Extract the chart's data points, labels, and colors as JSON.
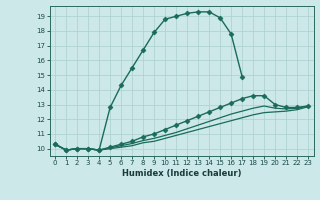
{
  "xlabel": "Humidex (Indice chaleur)",
  "bg_color": "#cce8e8",
  "line_color": "#1a6b5a",
  "grid_color": "#aacfcf",
  "xlim": [
    -0.5,
    23.5
  ],
  "ylim": [
    9.5,
    19.7
  ],
  "yticks": [
    10,
    11,
    12,
    13,
    14,
    15,
    16,
    17,
    18,
    19
  ],
  "xticks": [
    0,
    1,
    2,
    3,
    4,
    5,
    6,
    7,
    8,
    9,
    10,
    11,
    12,
    13,
    14,
    15,
    16,
    17,
    18,
    19,
    20,
    21,
    22,
    23
  ],
  "lines": [
    {
      "x": [
        0,
        1,
        2,
        3,
        4,
        5,
        6,
        7,
        8,
        9,
        10,
        11,
        12,
        13,
        14,
        15,
        16,
        17
      ],
      "y": [
        10.3,
        9.9,
        10.0,
        10.0,
        9.9,
        12.8,
        14.3,
        15.5,
        16.7,
        17.9,
        18.8,
        19.0,
        19.2,
        19.3,
        19.3,
        18.9,
        17.8,
        14.9
      ],
      "marker": "D",
      "markersize": 2.5,
      "linewidth": 1.0
    },
    {
      "x": [
        0,
        1,
        2,
        3,
        4,
        5,
        6,
        7,
        8,
        9,
        10,
        11,
        12,
        13,
        14,
        15,
        16,
        17,
        18,
        19,
        20,
        21,
        22,
        23
      ],
      "y": [
        10.3,
        9.9,
        10.0,
        10.0,
        9.9,
        10.1,
        10.3,
        10.5,
        10.8,
        11.0,
        11.3,
        11.6,
        11.9,
        12.2,
        12.5,
        12.8,
        13.1,
        13.4,
        13.6,
        13.6,
        13.0,
        12.8,
        12.8,
        12.9
      ],
      "marker": "D",
      "markersize": 2.5,
      "linewidth": 1.0
    },
    {
      "x": [
        0,
        1,
        2,
        3,
        4,
        5,
        6,
        7,
        8,
        9,
        10,
        11,
        12,
        13,
        14,
        15,
        16,
        17,
        18,
        19,
        20,
        21,
        22,
        23
      ],
      "y": [
        10.3,
        9.9,
        10.0,
        10.0,
        9.9,
        10.05,
        10.2,
        10.35,
        10.55,
        10.7,
        10.9,
        11.1,
        11.35,
        11.6,
        11.85,
        12.1,
        12.35,
        12.55,
        12.75,
        12.9,
        12.75,
        12.7,
        12.75,
        12.9
      ],
      "marker": null,
      "linewidth": 0.9
    },
    {
      "x": [
        0,
        1,
        2,
        3,
        4,
        5,
        6,
        7,
        8,
        9,
        10,
        11,
        12,
        13,
        14,
        15,
        16,
        17,
        18,
        19,
        20,
        21,
        22,
        23
      ],
      "y": [
        10.3,
        9.9,
        10.0,
        10.0,
        9.9,
        10.0,
        10.1,
        10.2,
        10.4,
        10.5,
        10.7,
        10.9,
        11.1,
        11.3,
        11.5,
        11.7,
        11.9,
        12.1,
        12.3,
        12.45,
        12.5,
        12.55,
        12.65,
        12.85
      ],
      "marker": null,
      "linewidth": 0.9
    }
  ]
}
